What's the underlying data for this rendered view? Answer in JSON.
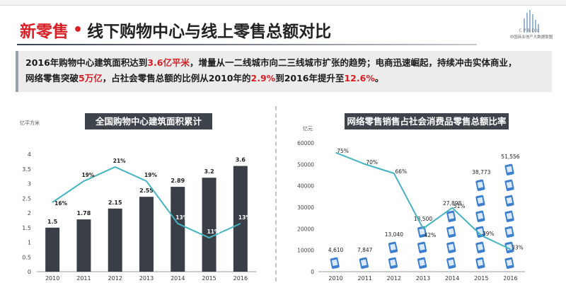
{
  "header": {
    "title_part1": "新零售",
    "title_dot": "•",
    "title_part2": "线下购物中心与线上零售总额对比",
    "logo_text": "中国商业地产大数据联盟",
    "logo_abbr": "CPBDU"
  },
  "summary": {
    "s1": "2016年购物中心建筑面积达到",
    "h1": "3.6亿平米",
    "s2": "，增量从一二线城市向二三线城市扩张的趋势；电商迅速崛起，持续冲击实体商业，",
    "s3": "网络零售突破",
    "h2": "5万亿",
    "s4": "，占社会零售总额的比例从2010年的",
    "h3": "2.9%",
    "s5": "到2016年提升至",
    "h4": "12.6%",
    "s6": "。"
  },
  "chart_data": [
    {
      "type": "bar",
      "title": "全国购物中心建筑面积累计",
      "ylabel": "亿平方米",
      "ylim": [
        0,
        4
      ],
      "yticks": [
        "0",
        "0.5",
        "1",
        "1.5",
        "2",
        "2.5",
        "3",
        "3.5",
        "4"
      ],
      "categories": [
        "2010",
        "2011",
        "2012",
        "2013",
        "2014",
        "2015",
        "2016"
      ],
      "values": [
        1.5,
        1.78,
        2.15,
        2.55,
        2.89,
        3.2,
        3.6
      ],
      "value_labels": [
        "1.5",
        "1.78",
        "2.15",
        "2.55",
        "2.89",
        "3.2",
        "3.6"
      ],
      "line": {
        "values": [
          16,
          19,
          21,
          19,
          13,
          11,
          13
        ],
        "labels": [
          "16%",
          "19%",
          "21%",
          "19%",
          "13%",
          "11%",
          "13%"
        ]
      },
      "colors": {
        "bar": "#3a3f47",
        "line": "#45b3c1"
      }
    },
    {
      "type": "bar",
      "title": "网络零售销售占社会消费品零售总额比率",
      "ylabel": "亿元",
      "ylim": [
        0,
        60000
      ],
      "yticks": [
        "0",
        "10000",
        "20000",
        "30000",
        "40000",
        "50000",
        "60000"
      ],
      "categories": [
        "2010",
        "2011",
        "2012",
        "2013",
        "2014",
        "2015",
        "2016"
      ],
      "values": [
        4610,
        7847,
        13040,
        18500,
        27898,
        38773,
        51556
      ],
      "value_labels": [
        "4,610",
        "7,847",
        "13,040",
        "18,500",
        "27,898",
        "38,773",
        "51,556"
      ],
      "line": {
        "values": [
          75,
          70,
          66,
          42,
          51,
          39,
          33
        ],
        "labels": [
          "75%",
          "70%",
          "66%",
          "42%",
          "51%",
          "39%",
          "33%"
        ]
      },
      "colors": {
        "icon": "#3c7fcf",
        "line": "#45b3c1"
      }
    }
  ]
}
